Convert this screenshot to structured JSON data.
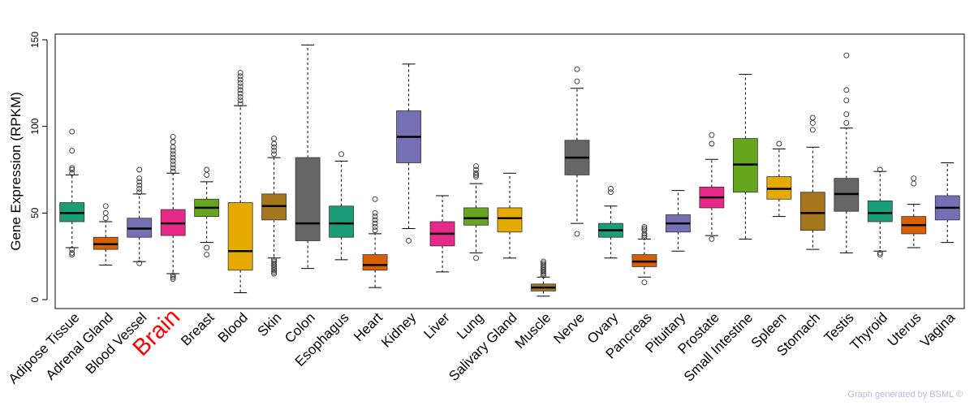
{
  "chart_data": {
    "type": "box",
    "ylabel": "Gene Expression (RPKM)",
    "ylim": [
      -1,
      150
    ],
    "yticks": [
      0,
      50,
      100,
      150
    ],
    "highlight": "Brain",
    "categories": [
      {
        "name": "Adipose Tissue",
        "color": "#1b9e77",
        "whisker_low": 30,
        "q1": 45,
        "median": 50,
        "q3": 56,
        "whisker_high": 72,
        "outliers": [
          26,
          27,
          29,
          73,
          75,
          76,
          86,
          97
        ]
      },
      {
        "name": "Adrenal Gland",
        "color": "#d95f02",
        "whisker_low": 20,
        "q1": 29,
        "median": 32,
        "q3": 36,
        "whisker_high": 45,
        "outliers": [
          47,
          50,
          54
        ]
      },
      {
        "name": "Blood Vessel",
        "color": "#7570b3",
        "whisker_low": 22,
        "q1": 36,
        "median": 41,
        "q3": 47,
        "whisker_high": 61,
        "outliers": [
          21,
          62,
          64,
          66,
          68,
          70,
          75
        ]
      },
      {
        "name": "Brain",
        "color": "#e7298a",
        "whisker_low": 15,
        "q1": 37,
        "median": 44,
        "q3": 52,
        "whisker_high": 73,
        "outliers": [
          12,
          13,
          14,
          74,
          76,
          78,
          80,
          82,
          84,
          86,
          88,
          91,
          94
        ]
      },
      {
        "name": "Breast",
        "color": "#66a61e",
        "whisker_low": 33,
        "q1": 48,
        "median": 53,
        "q3": 58,
        "whisker_high": 68,
        "outliers": [
          26,
          30,
          72,
          75
        ]
      },
      {
        "name": "Blood",
        "color": "#e6ab02",
        "whisker_low": 4,
        "q1": 17,
        "median": 28,
        "q3": 56,
        "whisker_high": 112,
        "outliers": [
          113,
          115,
          117,
          119,
          121,
          123,
          125,
          127,
          129,
          131
        ]
      },
      {
        "name": "Skin",
        "color": "#a6761d",
        "whisker_low": 24,
        "q1": 46,
        "median": 54,
        "q3": 61,
        "whisker_high": 82,
        "outliers": [
          15,
          16,
          17,
          18,
          19,
          20,
          21,
          22,
          23,
          84,
          86,
          88,
          90,
          93
        ]
      },
      {
        "name": "Colon",
        "color": "#666666",
        "whisker_low": 18,
        "q1": 34,
        "median": 44,
        "q3": 82,
        "whisker_high": 147,
        "outliers": []
      },
      {
        "name": "Esophagus",
        "color": "#1b9e77",
        "whisker_low": 23,
        "q1": 36,
        "median": 44,
        "q3": 54,
        "whisker_high": 80,
        "outliers": [
          84
        ]
      },
      {
        "name": "Heart",
        "color": "#d95f02",
        "whisker_low": 7,
        "q1": 17,
        "median": 20,
        "q3": 26,
        "whisker_high": 38,
        "outliers": [
          40,
          42,
          44,
          46,
          48,
          50,
          58
        ]
      },
      {
        "name": "Kidney",
        "color": "#7570b3",
        "whisker_low": 41,
        "q1": 79,
        "median": 94,
        "q3": 109,
        "whisker_high": 136,
        "outliers": [
          34
        ]
      },
      {
        "name": "Liver",
        "color": "#e7298a",
        "whisker_low": 16,
        "q1": 31,
        "median": 38,
        "q3": 45,
        "whisker_high": 60,
        "outliers": []
      },
      {
        "name": "Lung",
        "color": "#66a61e",
        "whisker_low": 27,
        "q1": 43,
        "median": 47,
        "q3": 53,
        "whisker_high": 67,
        "outliers": [
          24,
          71,
          72,
          73,
          75,
          77
        ]
      },
      {
        "name": "Salivary Gland",
        "color": "#e6ab02",
        "whisker_low": 24,
        "q1": 39,
        "median": 47,
        "q3": 53,
        "whisker_high": 73,
        "outliers": []
      },
      {
        "name": "Muscle",
        "color": "#a6761d",
        "whisker_low": 2,
        "q1": 5,
        "median": 7,
        "q3": 9,
        "whisker_high": 13,
        "outliers": [
          14,
          15,
          16,
          17,
          18,
          19,
          20,
          21,
          22
        ]
      },
      {
        "name": "Nerve",
        "color": "#666666",
        "whisker_low": 44,
        "q1": 72,
        "median": 82,
        "q3": 92,
        "whisker_high": 122,
        "outliers": [
          38,
          126,
          133
        ]
      },
      {
        "name": "Ovary",
        "color": "#1b9e77",
        "whisker_low": 24,
        "q1": 36,
        "median": 40,
        "q3": 44,
        "whisker_high": 54,
        "outliers": [
          62,
          64
        ]
      },
      {
        "name": "Pancreas",
        "color": "#d95f02",
        "whisker_low": 13,
        "q1": 19,
        "median": 22,
        "q3": 26,
        "whisker_high": 35,
        "outliers": [
          10,
          36,
          37,
          38,
          40,
          41,
          42
        ]
      },
      {
        "name": "Pituitary",
        "color": "#7570b3",
        "whisker_low": 28,
        "q1": 39,
        "median": 44,
        "q3": 49,
        "whisker_high": 63,
        "outliers": []
      },
      {
        "name": "Prostate",
        "color": "#e7298a",
        "whisker_low": 37,
        "q1": 53,
        "median": 59,
        "q3": 65,
        "whisker_high": 81,
        "outliers": [
          35,
          90,
          95
        ]
      },
      {
        "name": "Small Intestine",
        "color": "#66a61e",
        "whisker_low": 35,
        "q1": 62,
        "median": 78,
        "q3": 93,
        "whisker_high": 130,
        "outliers": []
      },
      {
        "name": "Spleen",
        "color": "#e6ab02",
        "whisker_low": 48,
        "q1": 58,
        "median": 64,
        "q3": 71,
        "whisker_high": 87,
        "outliers": [
          90
        ]
      },
      {
        "name": "Stomach",
        "color": "#a6761d",
        "whisker_low": 29,
        "q1": 40,
        "median": 50,
        "q3": 62,
        "whisker_high": 88,
        "outliers": [
          98,
          102,
          105
        ]
      },
      {
        "name": "Testis",
        "color": "#666666",
        "whisker_low": 27,
        "q1": 51,
        "median": 61,
        "q3": 70,
        "whisker_high": 99,
        "outliers": [
          102,
          107,
          115,
          121,
          141
        ]
      },
      {
        "name": "Thyroid",
        "color": "#1b9e77",
        "whisker_low": 28,
        "q1": 45,
        "median": 50,
        "q3": 57,
        "whisker_high": 74,
        "outliers": [
          26,
          27,
          75
        ]
      },
      {
        "name": "Uterus",
        "color": "#d95f02",
        "whisker_low": 30,
        "q1": 38,
        "median": 43,
        "q3": 48,
        "whisker_high": 55,
        "outliers": [
          67,
          70
        ]
      },
      {
        "name": "Vagina",
        "color": "#7570b3",
        "whisker_low": 33,
        "q1": 46,
        "median": 53,
        "q3": 60,
        "whisker_high": 79,
        "outliers": []
      }
    ]
  },
  "footer": {
    "credit": "Graph generated by BSML ©"
  }
}
